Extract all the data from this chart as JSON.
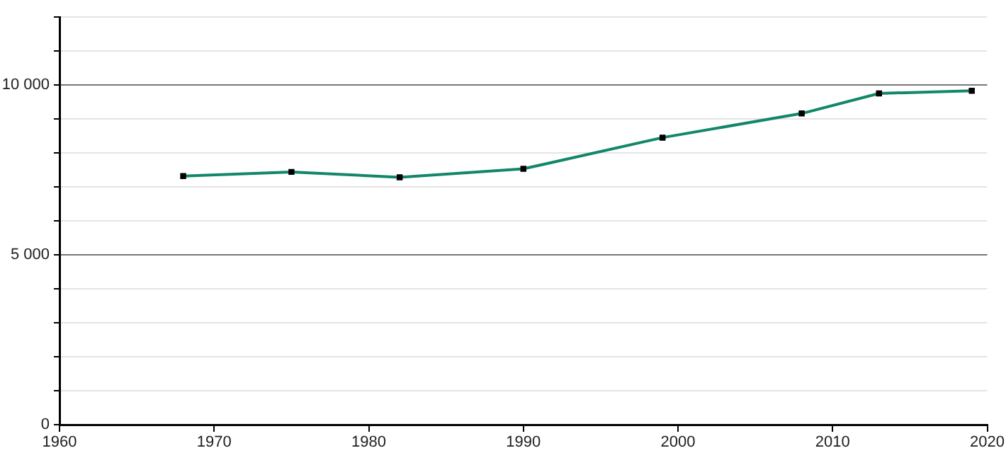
{
  "chart_data": {
    "type": "line",
    "x": [
      1968,
      1975,
      1982,
      1990,
      1999,
      2008,
      2013,
      2019
    ],
    "series": [
      {
        "color": "#12876a",
        "values": [
          7320,
          7440,
          7280,
          7530,
          8450,
          9160,
          9750,
          9830
        ]
      }
    ],
    "xlim": [
      1960,
      2020
    ],
    "xticks": [
      1960,
      1970,
      1980,
      1990,
      2000,
      2010,
      2020
    ],
    "ylim": [
      0,
      12000
    ],
    "yticks": [
      {
        "value": 0,
        "label": "0"
      },
      {
        "value": 1000,
        "label": null
      },
      {
        "value": 2000,
        "label": null
      },
      {
        "value": 3000,
        "label": null
      },
      {
        "value": 4000,
        "label": null
      },
      {
        "value": 5000,
        "label": "5 000"
      },
      {
        "value": 6000,
        "label": null
      },
      {
        "value": 7000,
        "label": null
      },
      {
        "value": 8000,
        "label": null
      },
      {
        "value": 9000,
        "label": null
      },
      {
        "value": 10000,
        "label": "10 000"
      },
      {
        "value": 11000,
        "label": null
      },
      {
        "value": 12000,
        "label": null
      }
    ],
    "grid": "y",
    "marker": "square",
    "line_style": "solid",
    "legend": false
  }
}
